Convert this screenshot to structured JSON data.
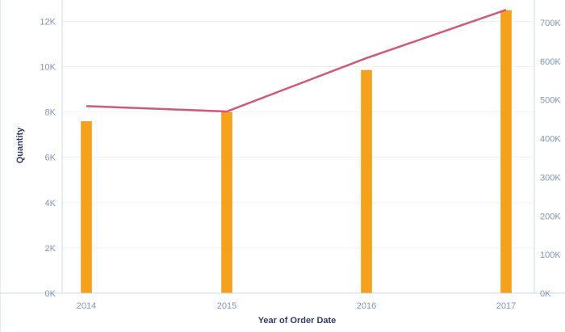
{
  "chart_data": {
    "type": "bar",
    "title": "",
    "categories": [
      "2014",
      "2015",
      "2016",
      "2017"
    ],
    "xlabel": "Year of Order Date",
    "ylabel": "Quantity",
    "ylim": [
      0,
      12800
    ],
    "y_ticks": [
      "0K",
      "2K",
      "4K",
      "6K",
      "8K",
      "10K",
      "12K"
    ],
    "y_tick_values": [
      0,
      2000,
      4000,
      6000,
      8000,
      10000,
      12000
    ],
    "y2lim": [
      0,
      750000
    ],
    "y2_ticks": [
      "0K",
      "100K",
      "200K",
      "300K",
      "400K",
      "500K",
      "600K",
      "700K"
    ],
    "y2_tick_values": [
      0,
      100000,
      200000,
      300000,
      400000,
      500000,
      600000,
      700000
    ],
    "series": [
      {
        "type": "bar",
        "axis": "left",
        "values": [
          7580,
          7980,
          9840,
          12480
        ]
      },
      {
        "type": "line",
        "axis": "right",
        "values": [
          484000,
          470000,
          608000,
          733000
        ]
      }
    ],
    "grid": true,
    "colors": {
      "bar": "#f4a11c",
      "bar_edge": "#e8900f",
      "line": "#cc5a78",
      "axis": "#c8d8ea",
      "grid": "#eef2f7",
      "tick": "#7f97b7",
      "title": "#333e66"
    }
  }
}
